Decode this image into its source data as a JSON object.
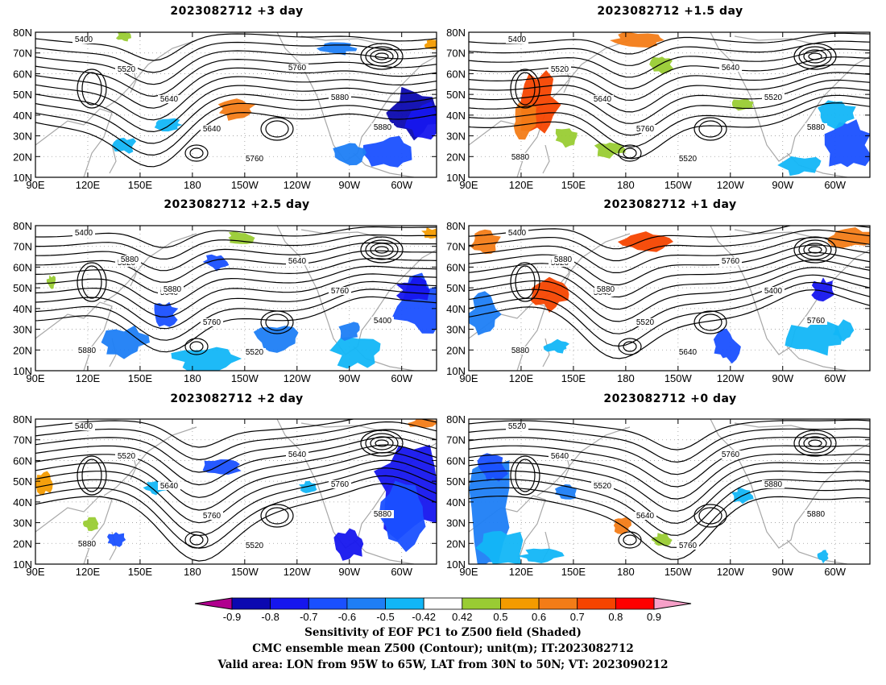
{
  "panels": [
    {
      "title": "2023082712 +3 day"
    },
    {
      "title": "2023082712 +1.5 day"
    },
    {
      "title": "2023082712 +2.5 day"
    },
    {
      "title": "2023082712 +1 day"
    },
    {
      "title": "2023082712 +2 day"
    },
    {
      "title": "2023082712 +0 day"
    }
  ],
  "axes": {
    "lat_labels": [
      "80N",
      "70N",
      "60N",
      "50N",
      "40N",
      "30N",
      "20N",
      "10N"
    ],
    "lon_labels": [
      "90E",
      "120E",
      "150E",
      "180",
      "150W",
      "120W",
      "90W",
      "60W"
    ],
    "lat_values": [
      80,
      70,
      60,
      50,
      40,
      30,
      20,
      10
    ],
    "lon_values": [
      90,
      120,
      150,
      180,
      210,
      240,
      270,
      300
    ],
    "lon_range": [
      90,
      320
    ],
    "lat_range": [
      10,
      80
    ]
  },
  "contour_labels": {
    "panel0": [
      "5400",
      "5520",
      "5640",
      "5640",
      "5760",
      "5760",
      "5880",
      "5880"
    ],
    "panel1": [
      "5400",
      "5520",
      "5640",
      "5760",
      "5520",
      "5640",
      "5520",
      "5880",
      "5880"
    ],
    "panel2": [
      "5400",
      "5520",
      "5640",
      "5760",
      "5520",
      "5640",
      "5760",
      "5400",
      "5880",
      "5880",
      "5880"
    ],
    "panel3": [
      "5400",
      "5520",
      "5640",
      "5520",
      "5640",
      "5760",
      "5400",
      "5760",
      "5880",
      "5880",
      "5880"
    ],
    "panel4": [
      "5400",
      "5520",
      "5640",
      "5760",
      "5520",
      "5640",
      "5760",
      "5880",
      "5880"
    ],
    "panel5": [
      "5520",
      "5640",
      "5520",
      "5640",
      "5760",
      "5760",
      "5880",
      "5880"
    ]
  },
  "colorbar": {
    "ticks": [
      "-0.9",
      "-0.8",
      "-0.7",
      "-0.6",
      "-0.5",
      "-0.42",
      "0.42",
      "0.5",
      "0.6",
      "0.7",
      "0.8",
      "0.9"
    ],
    "colors": [
      "#0b08b0",
      "#1616ee",
      "#1a50ff",
      "#1e7ef5",
      "#12b6f7",
      "#ffffff",
      "#99cc33",
      "#f49b00",
      "#f37c17",
      "#f64400",
      "#ff0000"
    ],
    "low_end_color": "#b0008e",
    "high_end_color": "#f6a0c8"
  },
  "caption": {
    "line1": "Sensitivity of EOF PC1 to Z500 field (Shaded)",
    "line2": "CMC ensemble mean Z500 (Contour); unit(m); IT:2023082712",
    "line3": "Valid area: LON from 95W to 65W, LAT from 30N to 50N; VT: 2023090212"
  }
}
